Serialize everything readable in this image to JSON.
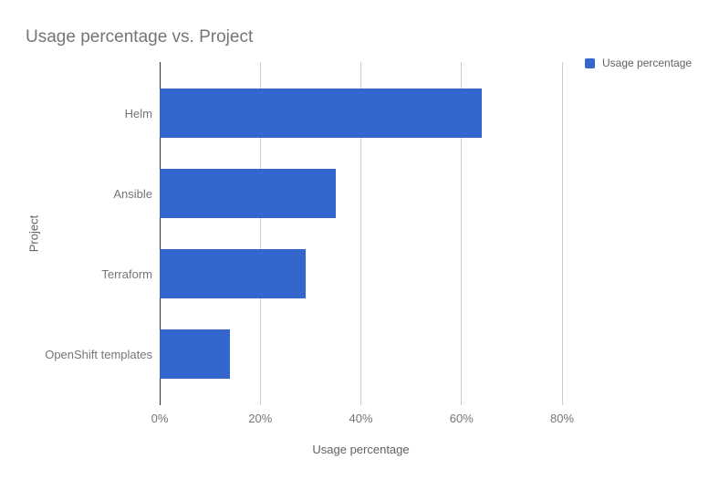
{
  "chart_data": {
    "type": "bar",
    "orientation": "horizontal",
    "title": "Usage percentage vs. Project",
    "xlabel": "Usage percentage",
    "ylabel": "Project",
    "categories": [
      "Helm",
      "Ansible",
      "Terraform",
      "OpenShift templates"
    ],
    "values": [
      64,
      35,
      29,
      14
    ],
    "series": [
      {
        "name": "Usage percentage",
        "values": [
          64,
          35,
          29,
          14
        ]
      }
    ],
    "x_ticks": [
      "0%",
      "20%",
      "40%",
      "60%",
      "80%"
    ],
    "xlim": [
      0,
      80
    ],
    "grid": true,
    "legend_position": "top-right"
  },
  "legend": {
    "label": "Usage percentage"
  },
  "colors": {
    "bar": "#3566CD",
    "gridline": "#CCCCCC",
    "zero_line": "#333333",
    "title_text": "#757575",
    "tick_text": "#757575",
    "axis_title_text": "#616161",
    "background": "#FFFFFF"
  }
}
